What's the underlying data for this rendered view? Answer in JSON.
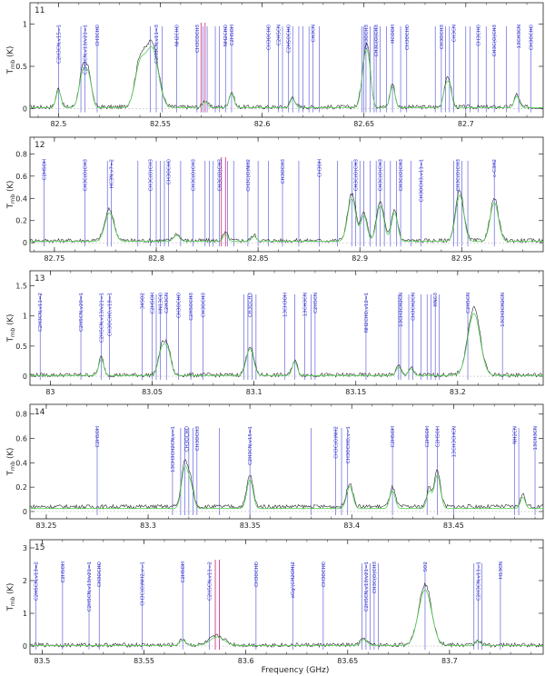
{
  "figure": {
    "xlabel": "Frequency (GHz)",
    "ylabel": "T",
    "ylabel_sub": "mb",
    "ylabel_unit": "(K)"
  },
  "colors": {
    "observed": "#2a2a2a",
    "model": "#5ad15a",
    "line_marker": "#4a4ad8",
    "label": "#3333cc",
    "highlight": "#cc2277",
    "highlight2": "#ee44ee"
  },
  "chart_data": [
    {
      "type": "line",
      "panel": "11",
      "xlim": [
        82.486,
        82.738
      ],
      "ylim": [
        -0.1,
        1.25
      ],
      "xticks": [
        82.5,
        82.55,
        82.6,
        82.65,
        82.7
      ],
      "yticks": [
        0,
        0.5,
        1
      ],
      "baseline": 0.02,
      "peaks": [
        {
          "x": 82.5,
          "a": 0.22,
          "w": 0.0012
        },
        {
          "x": 82.512,
          "a": 0.45,
          "w": 0.0018
        },
        {
          "x": 82.515,
          "a": 0.32,
          "w": 0.0015
        },
        {
          "x": 82.54,
          "a": 0.52,
          "w": 0.0025
        },
        {
          "x": 82.546,
          "a": 0.75,
          "w": 0.003
        },
        {
          "x": 82.572,
          "a": 0.08,
          "w": 0.0012
        },
        {
          "x": 82.585,
          "a": 0.18,
          "w": 0.0012
        },
        {
          "x": 82.615,
          "a": 0.12,
          "w": 0.0012
        },
        {
          "x": 82.65,
          "a": 0.38,
          "w": 0.0015
        },
        {
          "x": 82.652,
          "a": 0.55,
          "w": 0.0015
        },
        {
          "x": 82.664,
          "a": 0.28,
          "w": 0.0012
        },
        {
          "x": 82.69,
          "a": 0.22,
          "w": 0.0012
        },
        {
          "x": 82.692,
          "a": 0.26,
          "w": 0.0012
        },
        {
          "x": 82.725,
          "a": 0.15,
          "w": 0.0012
        }
      ],
      "markers": [
        82.5,
        82.511,
        82.513,
        82.519,
        82.545,
        82.548,
        82.551,
        82.558,
        82.568,
        82.571,
        82.573,
        82.577,
        82.579,
        82.582,
        82.585,
        82.603,
        82.608,
        82.61,
        82.613,
        82.615,
        82.618,
        82.62,
        82.623,
        82.625,
        82.628,
        82.649,
        82.65,
        82.651,
        82.653,
        82.655,
        82.656,
        82.658,
        82.661,
        82.664,
        82.668,
        82.671,
        82.685,
        82.688,
        82.69,
        82.692,
        82.694,
        82.7,
        82.702,
        82.706,
        82.71,
        82.714,
        82.72,
        82.726,
        82.732
      ],
      "highlight_markers": [
        82.57,
        82.572
      ],
      "label_items": [
        {
          "x": 82.5,
          "t": "C2H3CN,v15=1"
        },
        {
          "x": 82.513,
          "t": "C2H5CN,v13/v21=1"
        },
        {
          "x": 82.519,
          "t": "CH3CHO"
        },
        {
          "x": 82.548,
          "t": "C2H3CN,v11=3"
        },
        {
          "x": 82.558,
          "t": "NH2CHO"
        },
        {
          "x": 82.568,
          "t": "CH3COCH3"
        },
        {
          "x": 82.582,
          "t": "NH2CHO"
        },
        {
          "x": 82.585,
          "t": "C2H5OH"
        },
        {
          "x": 82.603,
          "t": "CH3OCHO"
        },
        {
          "x": 82.608,
          "t": "C2H5CN"
        },
        {
          "x": 82.613,
          "t": "C2H5OCHO"
        },
        {
          "x": 82.625,
          "t": "CH3CN"
        },
        {
          "x": 82.651,
          "t": "CH3OCH3"
        },
        {
          "x": 82.656,
          "t": "CH3C(O)CH3"
        },
        {
          "x": 82.664,
          "t": "HCOOH"
        },
        {
          "x": 82.671,
          "t": "CH3OCHO"
        },
        {
          "x": 82.688,
          "t": "CH3OCH3"
        },
        {
          "x": 82.694,
          "t": "CH3CN"
        },
        {
          "x": 82.706,
          "t": "CH3CHO"
        },
        {
          "x": 82.714,
          "t": "CH3C(O)CH3"
        },
        {
          "x": 82.726,
          "t": "13CH3CN"
        },
        {
          "x": 82.732,
          "t": "CH3OCHO"
        }
      ]
    },
    {
      "type": "line",
      "panel": "12",
      "xlim": [
        82.738,
        82.99
      ],
      "ylim": [
        -0.08,
        0.95
      ],
      "xticks": [
        82.75,
        82.8,
        82.85,
        82.9,
        82.95
      ],
      "yticks": [
        0,
        0.2,
        0.4,
        0.6,
        0.8
      ],
      "baseline": 0.02,
      "peaks": [
        {
          "x": 82.777,
          "a": 0.28,
          "w": 0.0022
        },
        {
          "x": 82.81,
          "a": 0.06,
          "w": 0.0015
        },
        {
          "x": 82.834,
          "a": 0.07,
          "w": 0.0012
        },
        {
          "x": 82.848,
          "a": 0.05,
          "w": 0.0012
        },
        {
          "x": 82.896,
          "a": 0.42,
          "w": 0.002
        },
        {
          "x": 82.902,
          "a": 0.25,
          "w": 0.0015
        },
        {
          "x": 82.91,
          "a": 0.35,
          "w": 0.0018
        },
        {
          "x": 82.917,
          "a": 0.28,
          "w": 0.0015
        },
        {
          "x": 82.949,
          "a": 0.45,
          "w": 0.002
        },
        {
          "x": 82.966,
          "a": 0.38,
          "w": 0.002
        }
      ],
      "markers": [
        82.745,
        82.765,
        82.776,
        82.778,
        82.791,
        82.797,
        82.8,
        82.802,
        82.804,
        82.806,
        82.812,
        82.818,
        82.824,
        82.826,
        82.828,
        82.831,
        82.835,
        82.838,
        82.845,
        82.85,
        82.855,
        82.862,
        82.87,
        82.88,
        82.889,
        82.896,
        82.898,
        82.9,
        82.902,
        82.905,
        82.908,
        82.91,
        82.912,
        82.915,
        82.918,
        82.92,
        82.925,
        82.93,
        82.946,
        82.948,
        82.95,
        82.953,
        82.966
      ],
      "highlight_markers": [
        82.832,
        82.834
      ],
      "label_items": [
        {
          "x": 82.745,
          "t": "C2H5OH"
        },
        {
          "x": 82.765,
          "t": "CH3C(O)CH3"
        },
        {
          "x": 82.778,
          "t": "HC3N,v7=2"
        },
        {
          "x": 82.797,
          "t": "CH3C(O)CH3"
        },
        {
          "x": 82.806,
          "t": "CH3OCHO"
        },
        {
          "x": 82.818,
          "t": "CH3C(O)CH3"
        },
        {
          "x": 82.831,
          "t": "CH3C(O)CH3"
        },
        {
          "x": 82.845,
          "t": "CH3C(O)NH2"
        },
        {
          "x": 82.862,
          "t": "CH3OCH3"
        },
        {
          "x": 82.88,
          "t": "CH3OH"
        },
        {
          "x": 82.898,
          "t": "CH3C(O)CH3"
        },
        {
          "x": 82.91,
          "t": "CH3C(O)CH3"
        },
        {
          "x": 82.92,
          "t": "CH3C(O)CH3"
        },
        {
          "x": 82.93,
          "t": "CH3OCH3,v11=1"
        },
        {
          "x": 82.948,
          "t": "CH3C(O)CH3"
        },
        {
          "x": 82.966,
          "t": "c-C3H2"
        }
      ]
    },
    {
      "type": "line",
      "panel": "13",
      "xlim": [
        82.99,
        83.242
      ],
      "ylim": [
        -0.15,
        1.75
      ],
      "xticks": [
        83,
        83.05,
        83.1,
        83.15,
        83.2
      ],
      "yticks": [
        0,
        0.5,
        1,
        1.5
      ],
      "baseline": 0.02,
      "peaks": [
        {
          "x": 83.025,
          "a": 0.3,
          "w": 0.0012
        },
        {
          "x": 83.055,
          "a": 0.5,
          "w": 0.0018
        },
        {
          "x": 83.058,
          "a": 0.35,
          "w": 0.0015
        },
        {
          "x": 83.098,
          "a": 0.48,
          "w": 0.0018
        },
        {
          "x": 83.12,
          "a": 0.25,
          "w": 0.0012
        },
        {
          "x": 83.171,
          "a": 0.15,
          "w": 0.0012
        },
        {
          "x": 83.177,
          "a": 0.12,
          "w": 0.0012
        },
        {
          "x": 83.208,
          "a": 1.12,
          "w": 0.003
        }
      ],
      "markers": [
        82.995,
        83.015,
        83.025,
        83.029,
        83.045,
        83.05,
        83.052,
        83.054,
        83.057,
        83.063,
        83.069,
        83.075,
        83.095,
        83.097,
        83.099,
        83.101,
        83.115,
        83.12,
        83.125,
        83.128,
        83.13,
        83.155,
        83.171,
        83.172,
        83.176,
        83.178,
        83.182,
        83.185,
        83.187,
        83.189,
        83.191,
        83.205,
        83.222
      ],
      "highlight_markers": [],
      "label_items": [
        {
          "x": 82.995,
          "t": "C2H3CN,v11=2"
        },
        {
          "x": 83.015,
          "t": "C2H5CN,v20=1"
        },
        {
          "x": 83.025,
          "t": "C2H5CN,v13/v21=1"
        },
        {
          "x": 83.029,
          "t": "CH3OCHO,v18=1"
        },
        {
          "x": 83.045,
          "t": "34SO2"
        },
        {
          "x": 83.05,
          "t": "C2H5OH"
        },
        {
          "x": 83.054,
          "t": "HN13CO"
        },
        {
          "x": 83.057,
          "t": "C2H3CN"
        },
        {
          "x": 83.063,
          "t": "CH3OCHO"
        },
        {
          "x": 83.069,
          "t": "C2H5OCH3"
        },
        {
          "x": 83.075,
          "t": "CH3OCH3"
        },
        {
          "x": 83.098,
          "t": "CH3OCH3"
        },
        {
          "x": 83.115,
          "t": "13CH3OH"
        },
        {
          "x": 83.125,
          "t": "13CH3CN"
        },
        {
          "x": 83.13,
          "t": "C2H5CN"
        },
        {
          "x": 83.155,
          "t": "NH2CHO,v12=1"
        },
        {
          "x": 83.172,
          "t": "13CH3CH2CN"
        },
        {
          "x": 83.178,
          "t": "CH3CH2CN"
        },
        {
          "x": 83.189,
          "t": "HNC3"
        },
        {
          "x": 83.205,
          "t": "C2H5CN"
        },
        {
          "x": 83.222,
          "t": "13CH3CH2CN"
        }
      ]
    },
    {
      "type": "line",
      "panel": "14",
      "xlim": [
        83.242,
        83.494
      ],
      "ylim": [
        -0.06,
        0.88
      ],
      "xticks": [
        83.25,
        83.3,
        83.35,
        83.4,
        83.45
      ],
      "yticks": [
        0,
        0.2,
        0.4,
        0.6,
        0.8
      ],
      "baseline": 0.04,
      "peaks": [
        {
          "x": 83.318,
          "a": 0.36,
          "w": 0.0016
        },
        {
          "x": 83.321,
          "a": 0.18,
          "w": 0.0014
        },
        {
          "x": 83.35,
          "a": 0.26,
          "w": 0.0015
        },
        {
          "x": 83.399,
          "a": 0.2,
          "w": 0.0015
        },
        {
          "x": 83.42,
          "a": 0.16,
          "w": 0.0013
        },
        {
          "x": 83.442,
          "a": 0.3,
          "w": 0.0015
        },
        {
          "x": 83.438,
          "a": 0.15,
          "w": 0.0012
        },
        {
          "x": 83.484,
          "a": 0.1,
          "w": 0.0012
        }
      ],
      "markers": [
        83.275,
        83.312,
        83.316,
        83.318,
        83.32,
        83.322,
        83.324,
        83.335,
        83.35,
        83.38,
        83.392,
        83.395,
        83.398,
        83.42,
        83.437,
        83.442,
        83.45,
        83.48,
        83.482,
        83.49
      ],
      "highlight_markers": [],
      "label_items": [
        {
          "x": 83.275,
          "t": "C2H5OH"
        },
        {
          "x": 83.312,
          "t": "13CH3CH2CN,v=1"
        },
        {
          "x": 83.319,
          "t": "CH3OCHO"
        },
        {
          "x": 83.324,
          "t": "CH3OCH3"
        },
        {
          "x": 83.35,
          "t": "C2H3CN,v15=1"
        },
        {
          "x": 83.392,
          "t": "CH3C(O)NH2"
        },
        {
          "x": 83.398,
          "t": "CH3OCHO,v=1"
        },
        {
          "x": 83.42,
          "t": "C2H5OH"
        },
        {
          "x": 83.437,
          "t": "C2H5OH"
        },
        {
          "x": 83.442,
          "t": "C2H5OH"
        },
        {
          "x": 83.45,
          "t": "13CH3CHCN"
        },
        {
          "x": 83.48,
          "t": "NH2CN"
        },
        {
          "x": 83.49,
          "t": "13CH3CN"
        }
      ]
    },
    {
      "type": "line",
      "panel": "15",
      "xlim": [
        83.494,
        83.746
      ],
      "ylim": [
        -0.25,
        3.25
      ],
      "xticks": [
        83.5,
        83.55,
        83.6,
        83.65,
        83.7
      ],
      "yticks": [
        0,
        1,
        2,
        3
      ],
      "baseline": 0.03,
      "peaks": [
        {
          "x": 83.569,
          "a": 0.18,
          "w": 0.0014
        },
        {
          "x": 83.586,
          "a": 0.28,
          "w": 0.0035
        },
        {
          "x": 83.658,
          "a": 0.2,
          "w": 0.0015
        },
        {
          "x": 83.688,
          "a": 1.85,
          "w": 0.0032
        },
        {
          "x": 83.714,
          "a": 0.15,
          "w": 0.0012
        }
      ],
      "markers": [
        83.497,
        83.51,
        83.523,
        83.528,
        83.549,
        83.569,
        83.582,
        83.605,
        83.623,
        83.638,
        83.657,
        83.659,
        83.661,
        83.663,
        83.665,
        83.688,
        83.712,
        83.714,
        83.716,
        83.725
      ],
      "highlight_markers": [
        83.585,
        83.587
      ],
      "label_items": [
        {
          "x": 83.497,
          "t": "C2H5CN,v13=2"
        },
        {
          "x": 83.51,
          "t": "C2H5OH"
        },
        {
          "x": 83.523,
          "t": "C2H5CN,v13/v21=1"
        },
        {
          "x": 83.528,
          "t": "CH3OCHO"
        },
        {
          "x": 83.549,
          "t": "CH3C(O)NH2,v=1"
        },
        {
          "x": 83.569,
          "t": "C2H5OH"
        },
        {
          "x": 83.582,
          "t": "C2H5CN,v11=2"
        },
        {
          "x": 83.605,
          "t": "CH3OCHO"
        },
        {
          "x": 83.623,
          "t": "aGg'(CH2OH)2"
        },
        {
          "x": 83.638,
          "t": "CH3OCHO"
        },
        {
          "x": 83.659,
          "t": "C2H5CN,v13/v21=1"
        },
        {
          "x": 83.663,
          "t": "CH3C(O)CH3"
        },
        {
          "x": 83.688,
          "t": "SO2"
        },
        {
          "x": 83.714,
          "t": "C2H3CN,v11=1"
        },
        {
          "x": 83.725,
          "t": "H13CN"
        }
      ]
    }
  ]
}
